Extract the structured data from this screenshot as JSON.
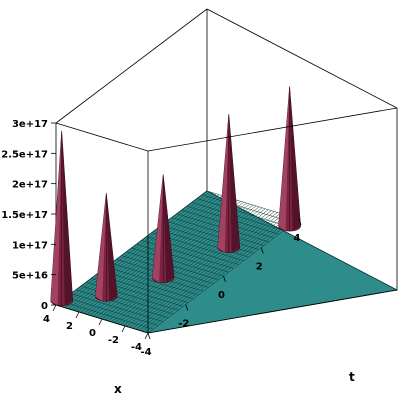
{
  "chart_data": {
    "type": "surface3d",
    "title": "",
    "xlabel": "x",
    "tlabel": "t",
    "zlabel": "",
    "x_range": [
      -4,
      4
    ],
    "t_range": [
      -4,
      4
    ],
    "z_range": [
      0,
      3e+17
    ],
    "x_ticks": [
      {
        "v": 4,
        "label": "4"
      },
      {
        "v": 2,
        "label": "2"
      },
      {
        "v": 0,
        "label": "0"
      },
      {
        "v": -2,
        "label": "-2"
      },
      {
        "v": -4,
        "label": "-4"
      }
    ],
    "t_ticks": [
      {
        "v": 4,
        "label": "4"
      },
      {
        "v": 2,
        "label": "2"
      },
      {
        "v": 0,
        "label": "0"
      },
      {
        "v": -2,
        "label": "-2"
      },
      {
        "v": -4,
        "label": "-4"
      }
    ],
    "z_ticks": [
      {
        "v": 0,
        "label": "0"
      },
      {
        "v": 5e+16,
        "label": "5e+16"
      },
      {
        "v": 1e+17,
        "label": "1e+17"
      },
      {
        "v": 1.5e+17,
        "label": "1.5e+17"
      },
      {
        "v": 2e+17,
        "label": "2e+17"
      },
      {
        "v": 2.5e+17,
        "label": "2.5e+17"
      },
      {
        "v": 3e+17,
        "label": "3e+17"
      }
    ],
    "peaks": [
      {
        "x": 4.0,
        "t": -3.7,
        "height": 2.8e+17
      },
      {
        "x": 1.6,
        "t": -2.8,
        "height": 1.7e+17
      },
      {
        "x": -0.4,
        "t": -1.0,
        "height": 1.7e+17
      },
      {
        "x": -2.0,
        "t": 1.5,
        "height": 2.2e+17
      },
      {
        "x": -4.0,
        "t": 3.5,
        "height": 2.3e+17
      }
    ],
    "grid_lines": 31,
    "base_color": "#2e8c8a",
    "grid_color": "#0d3a38",
    "peak_color": "#7a2240"
  }
}
